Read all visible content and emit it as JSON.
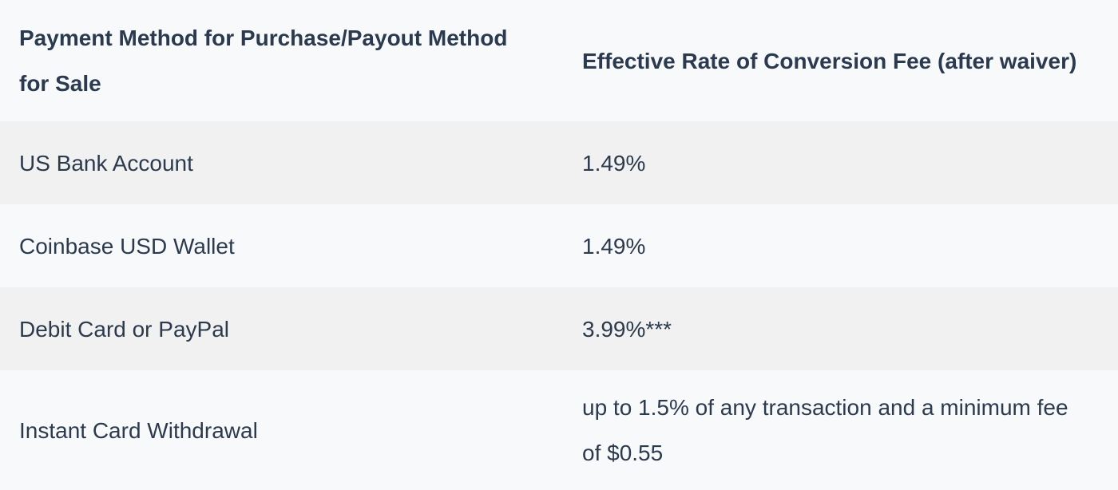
{
  "table": {
    "headers": [
      "Payment Method for Purchase/Payout Method for Sale",
      "Effective Rate of Conversion Fee (after waiver)"
    ],
    "rows": [
      {
        "method": "US Bank Account",
        "rate": "1.49%"
      },
      {
        "method": "Coinbase USD Wallet",
        "rate": "1.49%"
      },
      {
        "method": "Debit Card or PayPal",
        "rate": "3.99%***"
      },
      {
        "method": "Instant Card Withdrawal",
        "rate": "up to 1.5% of any transaction and a minimum fee of $0.55"
      }
    ]
  },
  "colors": {
    "background": "#f8f9fb",
    "shaded_row": "#f1f1f1",
    "text": "#2c3a4e"
  }
}
